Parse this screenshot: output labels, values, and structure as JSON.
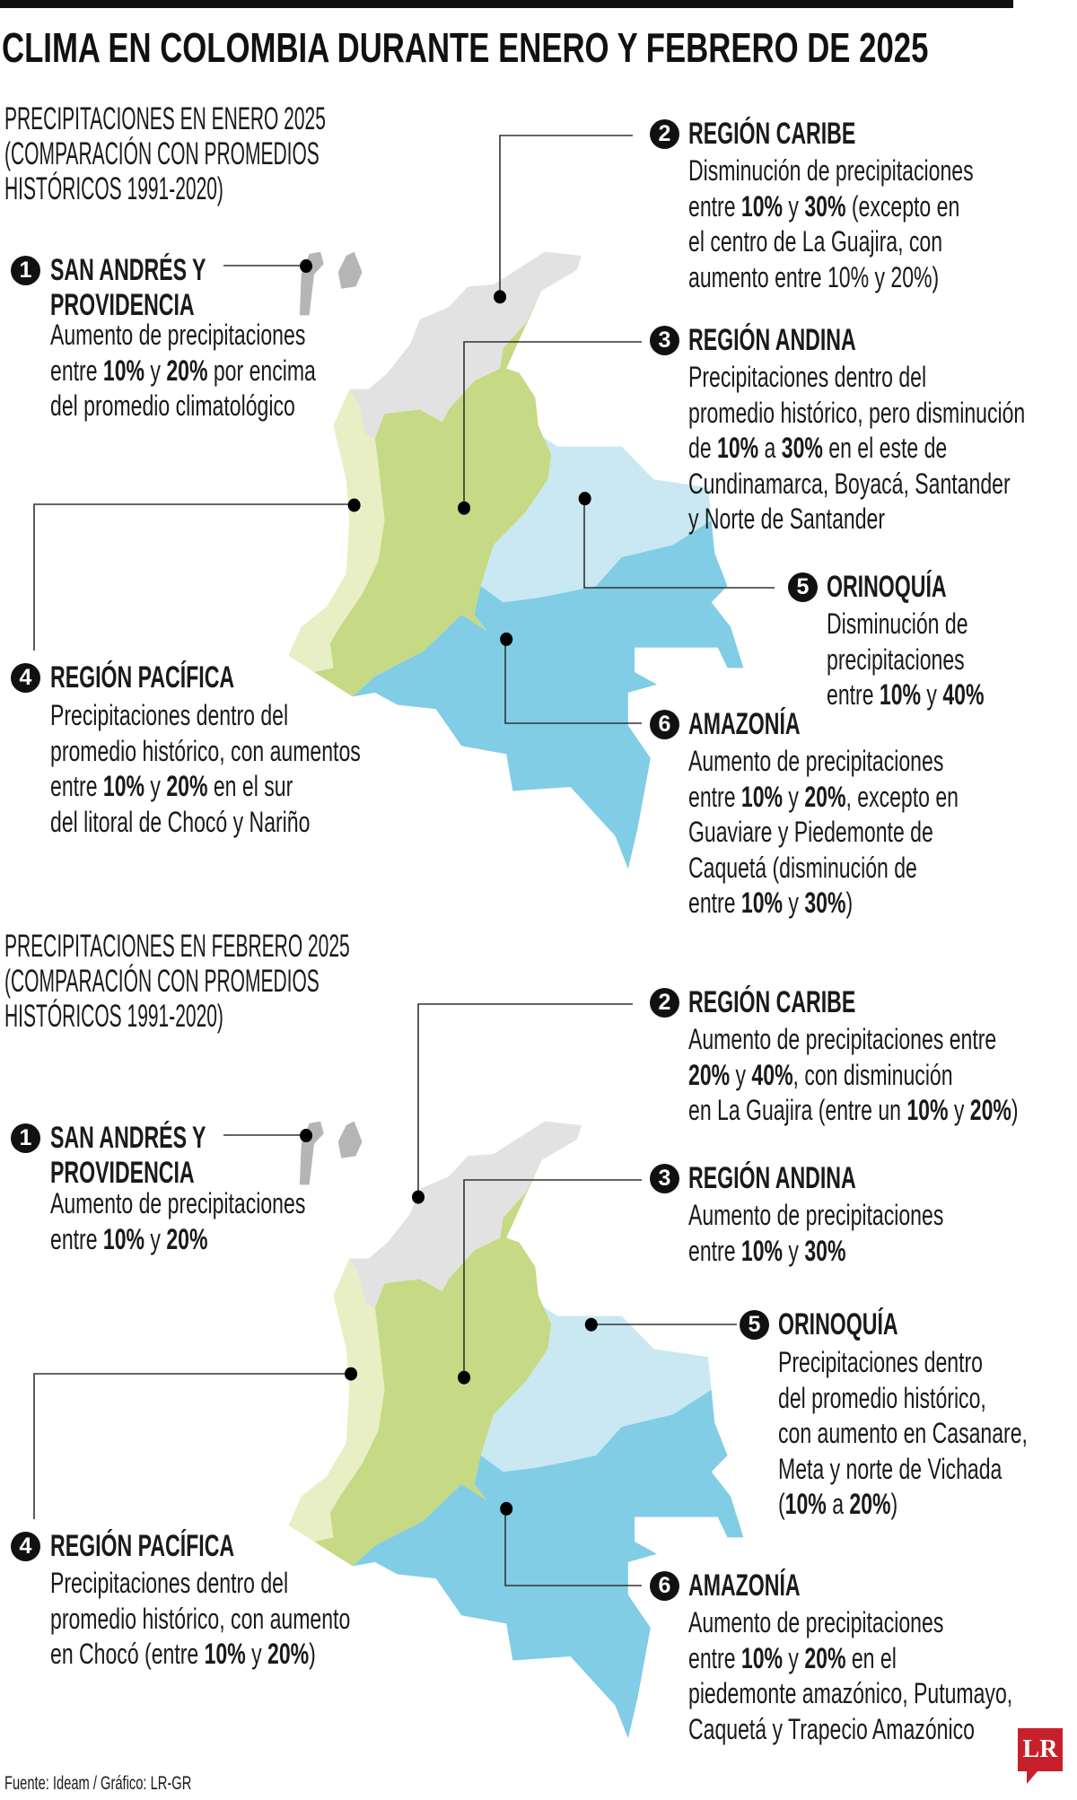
{
  "title": "CLIMA EN COLOMBIA DURANTE ENERO Y FEBRERO DE 2025",
  "colors": {
    "caribe": "#e2e2e2",
    "andina": "#c6d984",
    "pacifica": "#e8efc4",
    "orinoquia": "#c9e8f2",
    "amazonia": "#80cde5",
    "islands": "#b5b5b5",
    "logo": "#c8202a"
  },
  "sections": [
    {
      "heading_lines": [
        "PRECIPITACIONES EN ENERO 2025",
        "(COMPARACIÓN CON PROMEDIOS",
        "HISTÓRICOS 1991-2020)"
      ],
      "regions": [
        {
          "num": "1",
          "title_lines": [
            "SAN ANDRÉS Y",
            "PROVIDENCIA"
          ],
          "body": [
            [
              "Aumento de precipitaciones"
            ],
            [
              "entre ",
              {
                "b": "10%"
              },
              " y ",
              {
                "b": "20%"
              },
              " por encima"
            ],
            [
              "del promedio climatológico"
            ]
          ]
        },
        {
          "num": "2",
          "title_lines": [
            "REGIÓN CARIBE"
          ],
          "body": [
            [
              "Disminución de precipitaciones"
            ],
            [
              "entre ",
              {
                "b": "10%"
              },
              " y ",
              {
                "b": "30%"
              },
              " (excepto en"
            ],
            [
              "el centro de La Guajira, con"
            ],
            [
              "aumento entre 10% y 20%)"
            ]
          ]
        },
        {
          "num": "3",
          "title_lines": [
            "REGIÓN ANDINA"
          ],
          "body": [
            [
              "Precipitaciones dentro del"
            ],
            [
              "promedio histórico, pero disminución"
            ],
            [
              "de ",
              {
                "b": "10%"
              },
              " a ",
              {
                "b": "30%"
              },
              " en el este de"
            ],
            [
              "Cundinamarca, Boyacá, Santander"
            ],
            [
              "y Norte de Santander"
            ]
          ]
        },
        {
          "num": "4",
          "title_lines": [
            "REGIÓN PACÍFICA"
          ],
          "body": [
            [
              "Precipitaciones dentro del"
            ],
            [
              "promedio histórico, con aumentos"
            ],
            [
              "entre ",
              {
                "b": "10%"
              },
              " y ",
              {
                "b": "20%"
              },
              " en el sur"
            ],
            [
              "del litoral de Chocó y Nariño"
            ]
          ]
        },
        {
          "num": "5",
          "title_lines": [
            "ORINOQUÍA"
          ],
          "body": [
            [
              "Disminución de"
            ],
            [
              "precipitaciones"
            ],
            [
              "entre ",
              {
                "b": "10%"
              },
              " y ",
              {
                "b": "40%"
              }
            ]
          ]
        },
        {
          "num": "6",
          "title_lines": [
            "AMAZONÍA"
          ],
          "body": [
            [
              "Aumento de precipitaciones"
            ],
            [
              "entre ",
              {
                "b": "10%"
              },
              " y ",
              {
                "b": "20%"
              },
              ", excepto en"
            ],
            [
              "Guaviare y Piedemonte de"
            ],
            [
              "Caquetá (disminución de"
            ],
            [
              "entre ",
              {
                "b": "10%"
              },
              " y ",
              {
                "b": "30%"
              },
              ")"
            ]
          ]
        }
      ]
    },
    {
      "heading_lines": [
        "PRECIPITACIONES EN FEBRERO 2025",
        "(COMPARACIÓN CON PROMEDIOS",
        "HISTÓRICOS 1991-2020)"
      ],
      "regions": [
        {
          "num": "1",
          "title_lines": [
            "SAN ANDRÉS Y",
            "PROVIDENCIA"
          ],
          "body": [
            [
              "Aumento de precipitaciones"
            ],
            [
              "entre ",
              {
                "b": "10%"
              },
              " y ",
              {
                "b": "20%"
              }
            ]
          ]
        },
        {
          "num": "2",
          "title_lines": [
            "REGIÓN CARIBE"
          ],
          "body": [
            [
              "Aumento de precipitaciones entre"
            ],
            [
              {
                "b": "20%"
              },
              " y ",
              {
                "b": "40%"
              },
              ", con disminución"
            ],
            [
              "en La Guajira (entre un ",
              {
                "b": "10%"
              },
              " y ",
              {
                "b": "20%"
              },
              ")"
            ]
          ]
        },
        {
          "num": "3",
          "title_lines": [
            "REGIÓN ANDINA"
          ],
          "body": [
            [
              "Aumento de precipitaciones"
            ],
            [
              "entre ",
              {
                "b": "10%"
              },
              " y ",
              {
                "b": "30%"
              }
            ]
          ]
        },
        {
          "num": "4",
          "title_lines": [
            "REGIÓN PACÍFICA"
          ],
          "body": [
            [
              "Precipitaciones dentro del"
            ],
            [
              "promedio histórico, con aumento"
            ],
            [
              "en Chocó (entre ",
              {
                "b": "10%"
              },
              " y ",
              {
                "b": "20%"
              },
              ")"
            ]
          ]
        },
        {
          "num": "5",
          "title_lines": [
            "ORINOQUÍA"
          ],
          "body": [
            [
              "Precipitaciones dentro"
            ],
            [
              "del promedio histórico,"
            ],
            [
              "con aumento en Casanare,"
            ],
            [
              "Meta y norte de Vichada"
            ],
            [
              "(",
              {
                "b": "10%"
              },
              " a ",
              {
                "b": "20%"
              },
              ")"
            ]
          ]
        },
        {
          "num": "6",
          "title_lines": [
            "AMAZONÍA"
          ],
          "body": [
            [
              "Aumento de precipitaciones"
            ],
            [
              "entre ",
              {
                "b": "10%"
              },
              " y ",
              {
                "b": "20%"
              },
              " en el"
            ],
            [
              "piedemonte amazónico, Putumayo,"
            ],
            [
              "Caquetá y Trapecio Amazónico"
            ]
          ]
        }
      ]
    }
  ],
  "source": "Fuente: Ideam / Gráfico: LR-GR",
  "logo_text": "LR"
}
